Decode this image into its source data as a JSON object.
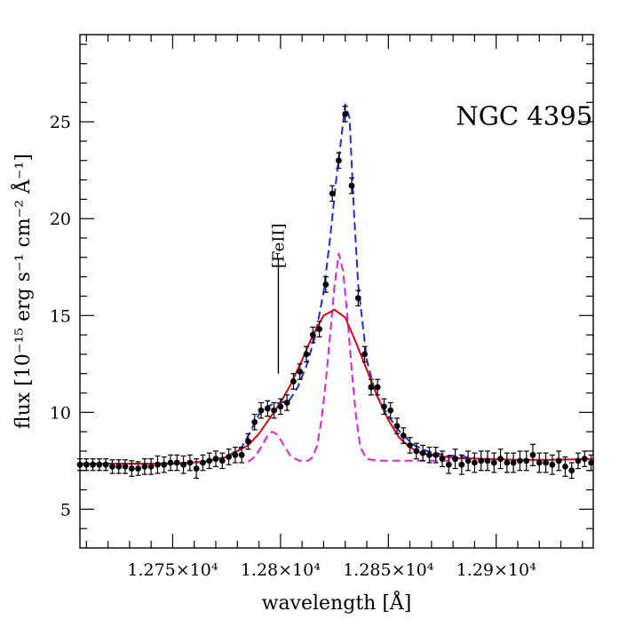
{
  "chart_data": {
    "type": "scatter",
    "title": "",
    "xlabel": "wavelength [Å]",
    "ylabel": "flux [10⁻¹⁵ erg s⁻¹ cm⁻² Å⁻¹]",
    "xlim": [
      12707,
      12945
    ],
    "ylim": [
      3,
      29.5
    ],
    "xticks": [
      12750,
      12800,
      12850,
      12900
    ],
    "xtick_labels": [
      "1.275×10⁴",
      "1.28×10⁴",
      "1.285×10⁴",
      "1.29×10⁴"
    ],
    "yticks": [
      5,
      10,
      15,
      20,
      25
    ],
    "ytick_labels": [
      "5",
      "10",
      "15",
      "20",
      "25"
    ],
    "grid": false,
    "annotations": [
      {
        "text": "NGC 4395",
        "x": 12913,
        "y": 25.3
      },
      {
        "text": "[FeII]",
        "x": 12799,
        "y": 18.6,
        "rotation": -90,
        "line_to_y": 12.0
      }
    ],
    "series": [
      {
        "style": "points-with-errorbars",
        "color": "#000000",
        "x": [
          12707,
          12710,
          12713,
          12716,
          12719,
          12722,
          12725,
          12728,
          12731,
          12734,
          12737,
          12740,
          12743,
          12746,
          12749,
          12752,
          12755,
          12758,
          12761,
          12764,
          12767,
          12770,
          12773,
          12776,
          12779,
          12782,
          12785,
          12788,
          12791,
          12794,
          12797,
          12800,
          12803,
          12806,
          12809,
          12812,
          12815,
          12818,
          12821,
          12824,
          12827,
          12830,
          12833,
          12836,
          12839,
          12842,
          12845,
          12848,
          12851,
          12854,
          12857,
          12860,
          12863,
          12866,
          12869,
          12872,
          12875,
          12878,
          12881,
          12884,
          12887,
          12890,
          12893,
          12896,
          12899,
          12902,
          12905,
          12908,
          12911,
          12914,
          12917,
          12920,
          12923,
          12926,
          12929,
          12932,
          12935,
          12938,
          12941,
          12944
        ],
        "y": [
          7.3,
          7.3,
          7.3,
          7.3,
          7.3,
          7.2,
          7.2,
          7.2,
          7.1,
          7.1,
          7.2,
          7.2,
          7.3,
          7.3,
          7.4,
          7.4,
          7.3,
          7.4,
          7.1,
          7.4,
          7.5,
          7.6,
          7.5,
          7.7,
          7.8,
          7.8,
          8.5,
          9.5,
          10.1,
          10.2,
          10.1,
          10.3,
          10.5,
          11.6,
          12.1,
          13.0,
          14.0,
          14.3,
          16.6,
          21.3,
          23.0,
          25.4,
          21.7,
          15.9,
          13.0,
          11.3,
          11.3,
          10.3,
          10.1,
          9.3,
          8.8,
          8.3,
          8.0,
          7.9,
          7.8,
          7.8,
          7.6,
          7.3,
          7.6,
          7.3,
          7.5,
          7.4,
          7.5,
          7.5,
          7.4,
          7.6,
          7.4,
          7.4,
          7.5,
          7.5,
          7.8,
          7.4,
          7.4,
          7.3,
          7.5,
          7.2,
          7.0,
          7.5,
          7.6,
          7.4
        ],
        "yerr": [
          0.3,
          0.3,
          0.3,
          0.3,
          0.3,
          0.35,
          0.35,
          0.35,
          0.4,
          0.35,
          0.4,
          0.4,
          0.45,
          0.4,
          0.4,
          0.4,
          0.45,
          0.4,
          0.5,
          0.4,
          0.4,
          0.4,
          0.4,
          0.4,
          0.4,
          0.4,
          0.4,
          0.4,
          0.4,
          0.4,
          0.4,
          0.4,
          0.4,
          0.4,
          0.4,
          0.4,
          0.4,
          0.4,
          0.4,
          0.4,
          0.4,
          0.4,
          0.4,
          0.4,
          0.4,
          0.4,
          0.4,
          0.4,
          0.4,
          0.4,
          0.4,
          0.4,
          0.4,
          0.4,
          0.4,
          0.4,
          0.4,
          0.45,
          0.5,
          0.5,
          0.5,
          0.5,
          0.5,
          0.5,
          0.5,
          0.5,
          0.5,
          0.5,
          0.5,
          0.5,
          0.55,
          0.5,
          0.5,
          0.5,
          0.5,
          0.5,
          0.4,
          0.4,
          0.4,
          0.4
        ]
      },
      {
        "style": "solid-line",
        "color": "#e0001b",
        "x": [
          12707,
          12720,
          12735,
          12750,
          12765,
          12775,
          12785,
          12790,
          12795,
          12800,
          12805,
          12810,
          12815,
          12820,
          12825,
          12830,
          12835,
          12840,
          12845,
          12850,
          12855,
          12860,
          12865,
          12870,
          12880,
          12895,
          12910,
          12925,
          12945
        ],
        "y": [
          7.35,
          7.35,
          7.35,
          7.35,
          7.45,
          7.7,
          8.3,
          8.9,
          9.7,
          10.5,
          11.5,
          12.7,
          14.0,
          15.0,
          15.3,
          14.9,
          13.6,
          12.2,
          10.8,
          9.6,
          8.7,
          8.2,
          7.9,
          7.8,
          7.65,
          7.6,
          7.55,
          7.55,
          7.6
        ]
      },
      {
        "style": "dashed-line",
        "color": "#1f2bd6",
        "x": [
          12707,
          12720,
          12735,
          12750,
          12765,
          12775,
          12782,
          12786,
          12790,
          12794,
          12796,
          12800,
          12804,
          12808,
          12812,
          12816,
          12820,
          12823,
          12826,
          12828,
          12830,
          12832,
          12834,
          12836,
          12840,
          12844,
          12850,
          12856,
          12862,
          12868,
          12876,
          12890
        ],
        "y": [
          7.35,
          7.35,
          7.35,
          7.35,
          7.45,
          7.7,
          8.2,
          9.0,
          9.9,
          10.3,
          10.4,
          10.5,
          10.6,
          11.3,
          12.4,
          13.9,
          16.2,
          19.0,
          22.2,
          24.0,
          25.9,
          25.2,
          20.5,
          16.6,
          12.7,
          11.0,
          9.8,
          8.9,
          8.3,
          8.0,
          7.8,
          7.65
        ]
      },
      {
        "style": "dashed-line",
        "color": "#e020d8",
        "x": [
          12785,
          12788,
          12791,
          12794,
          12796,
          12798,
          12800,
          12802,
          12805,
          12809,
          12813,
          12815,
          12817,
          12819,
          12821,
          12823,
          12825,
          12827,
          12829,
          12831,
          12833,
          12835,
          12837,
          12840,
          12845,
          12850,
          12860,
          12880
        ],
        "y": [
          7.45,
          7.7,
          8.2,
          8.8,
          9.0,
          8.9,
          8.6,
          8.2,
          7.7,
          7.5,
          7.5,
          7.7,
          8.3,
          9.6,
          11.6,
          14.0,
          16.5,
          18.2,
          17.3,
          15.0,
          12.2,
          9.8,
          8.2,
          7.6,
          7.5,
          7.5,
          7.5,
          7.5
        ]
      }
    ]
  }
}
